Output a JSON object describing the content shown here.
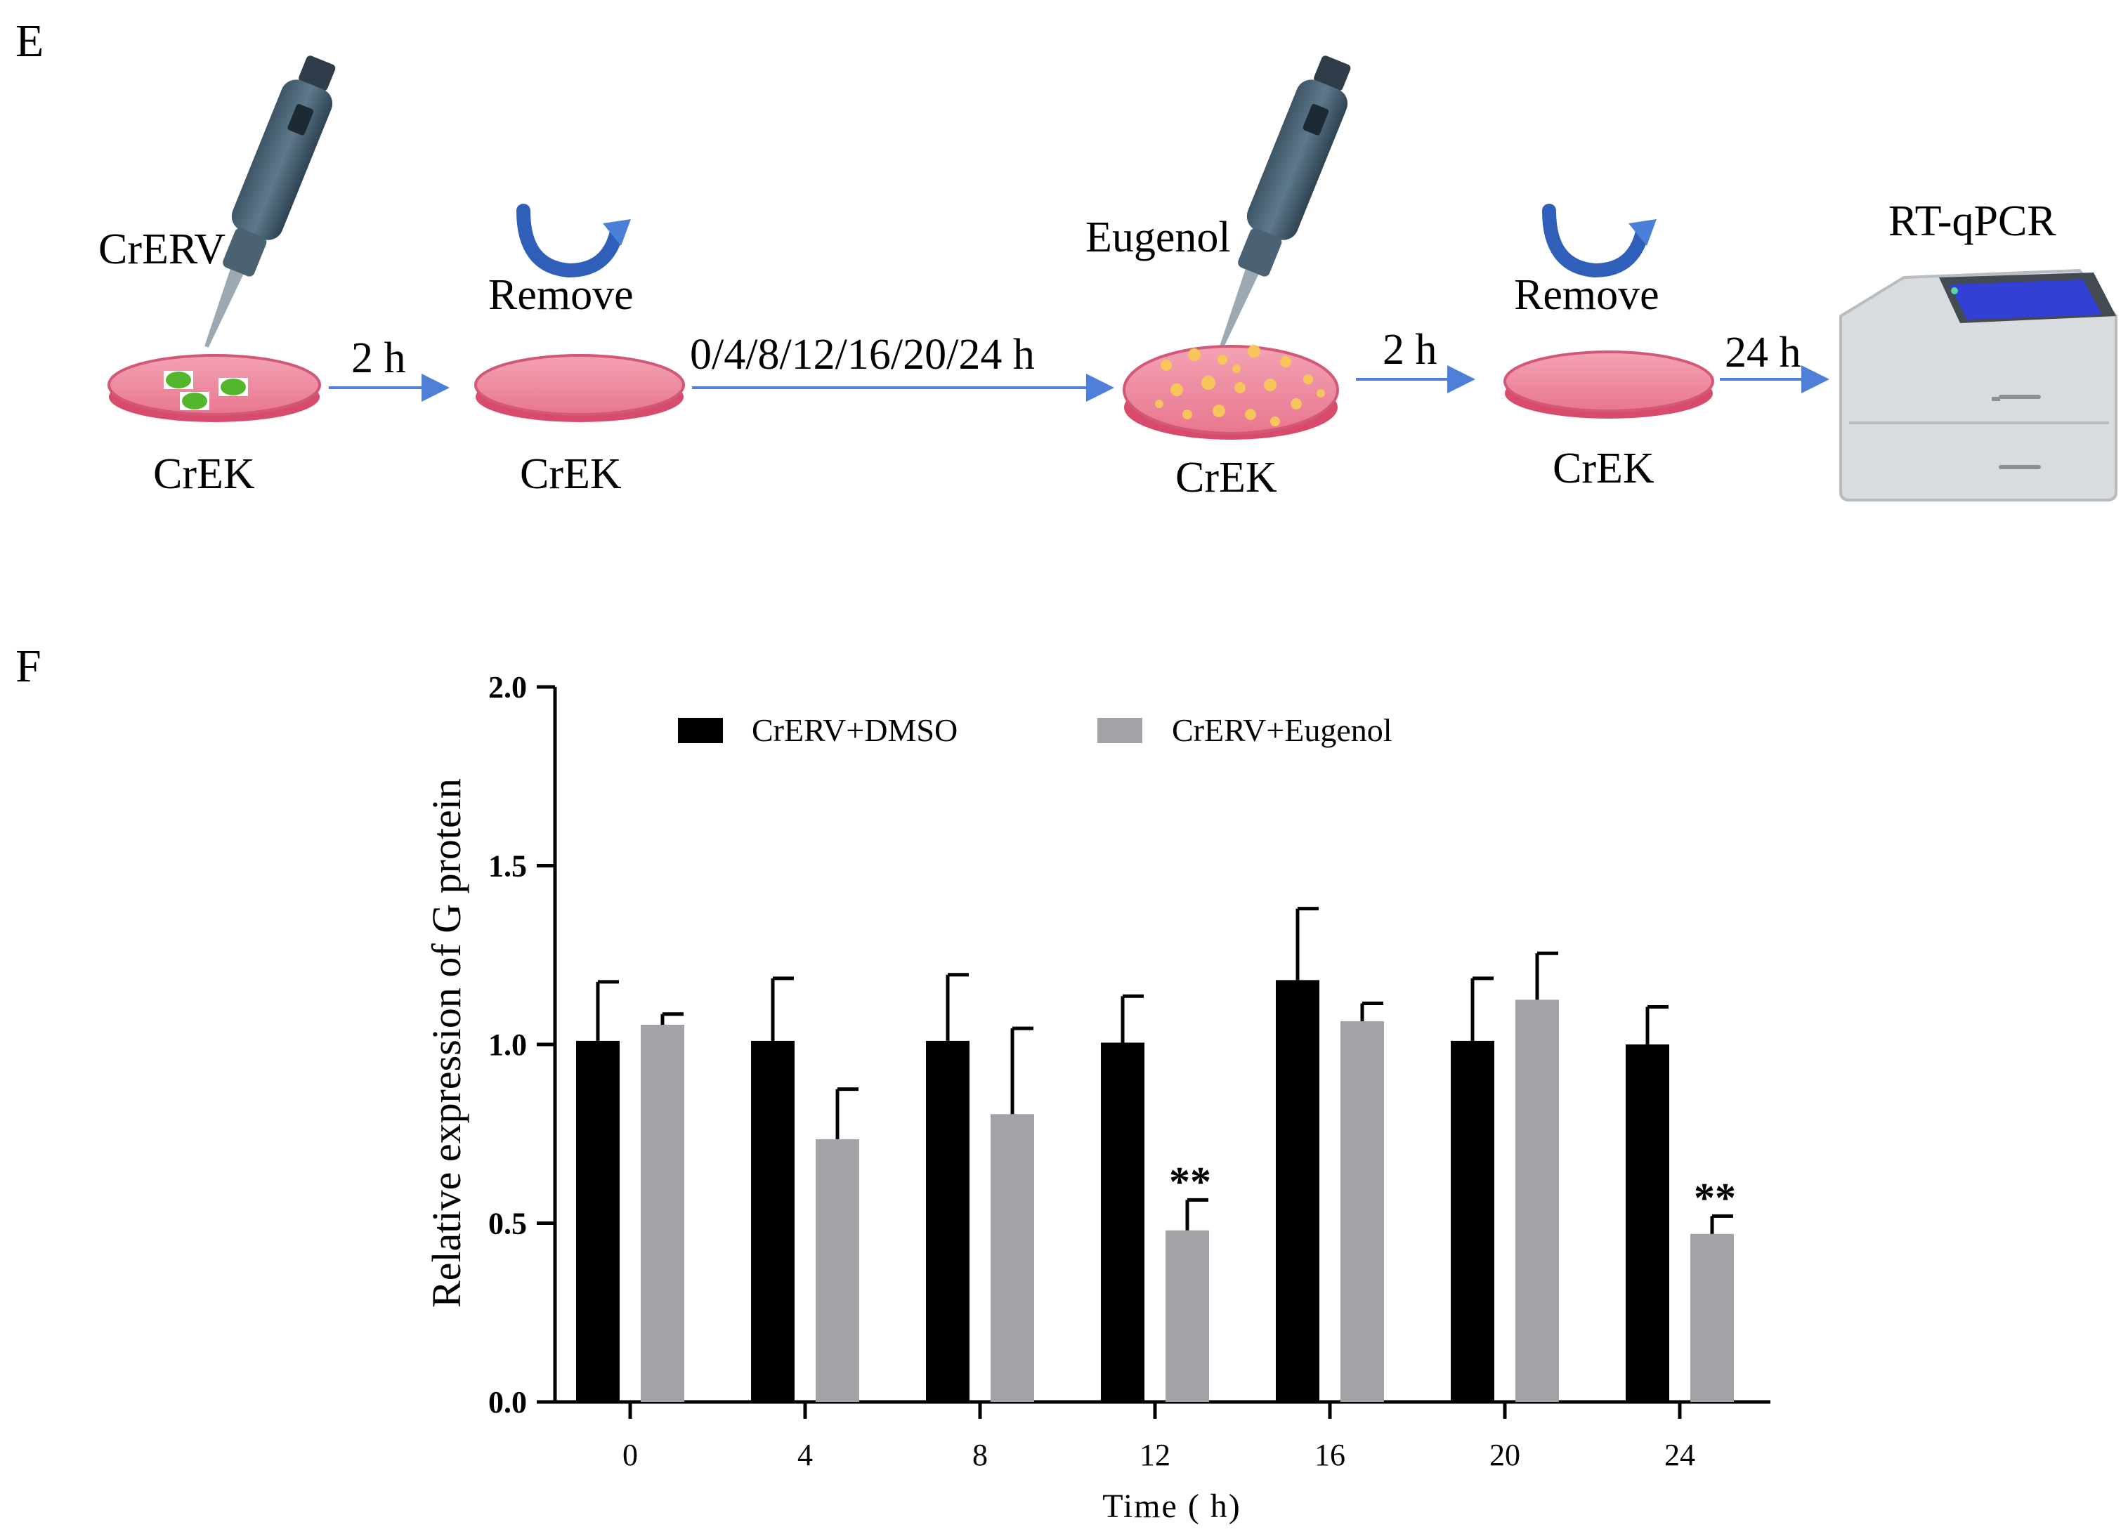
{
  "panel_e": {
    "letter": "E",
    "steps": {
      "virus": "CrERV",
      "cells": "CrEK",
      "remove": "Remove",
      "drug": "Eugenol",
      "assay": "RT-qPCR"
    },
    "arrows": [
      "2 h",
      "0/4/8/12/16/20/24 h",
      "2 h",
      "24 h"
    ]
  },
  "panel_f": {
    "letter": "F"
  },
  "chart_data": {
    "type": "bar",
    "title": "",
    "xlabel": "Time ( h)",
    "ylabel": "Relative expression of G protein",
    "categories": [
      "0",
      "4",
      "8",
      "12",
      "16",
      "20",
      "24"
    ],
    "ylim": [
      0,
      2.0
    ],
    "yticks": [
      "0.0",
      "0.5",
      "1.0",
      "1.5",
      "2.0"
    ],
    "grid": false,
    "legend_position": "top-left",
    "series": [
      {
        "name": "CrERV+DMSO",
        "color": "#000000",
        "values": [
          1.01,
          1.01,
          1.01,
          1.005,
          1.18,
          1.01,
          1.0
        ],
        "errors": [
          0.165,
          0.175,
          0.185,
          0.13,
          0.2,
          0.175,
          0.105
        ]
      },
      {
        "name": "CrERV+Eugenol",
        "color": "#a3a3a7",
        "values": [
          1.055,
          0.735,
          0.805,
          0.48,
          1.065,
          1.125,
          0.47
        ],
        "errors": [
          0.03,
          0.14,
          0.24,
          0.085,
          0.05,
          0.13,
          0.05
        ]
      }
    ],
    "annotations": [
      {
        "category": "12",
        "series": "CrERV+Eugenol",
        "text": "**"
      },
      {
        "category": "24",
        "series": "CrERV+Eugenol",
        "text": "**"
      }
    ]
  }
}
